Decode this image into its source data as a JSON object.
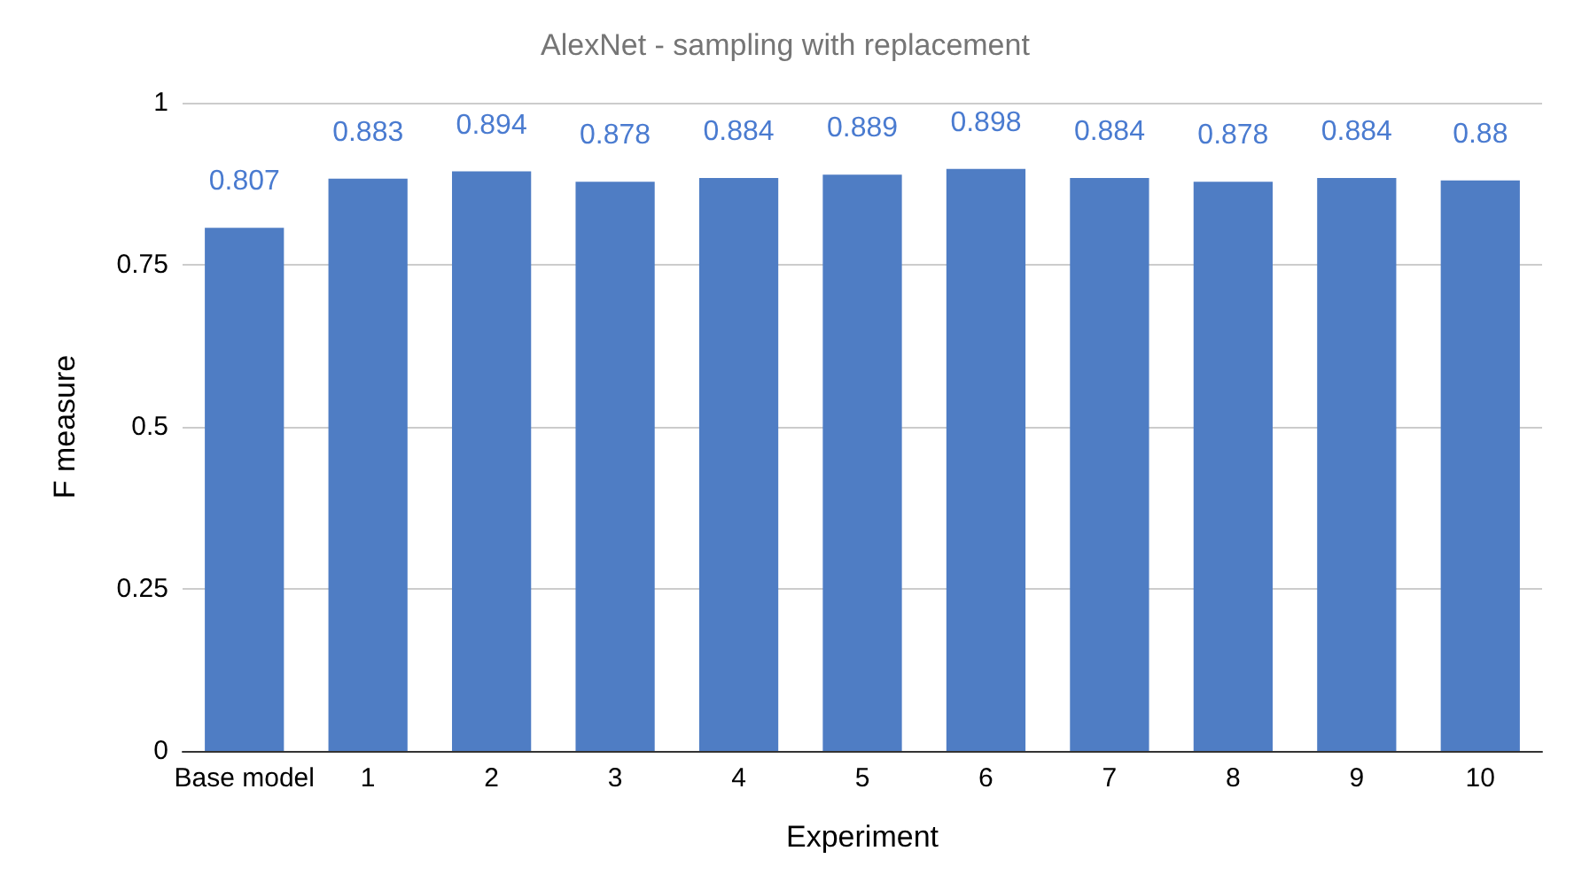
{
  "chart_data": {
    "type": "bar",
    "title": "AlexNet - sampling with replacement",
    "xlabel": "Experiment",
    "ylabel": "F measure",
    "categories": [
      "Base model",
      "1",
      "2",
      "3",
      "4",
      "5",
      "6",
      "7",
      "8",
      "9",
      "10"
    ],
    "values": [
      0.807,
      0.883,
      0.894,
      0.878,
      0.884,
      0.889,
      0.898,
      0.884,
      0.878,
      0.884,
      0.88
    ],
    "color": "#4f7dc4",
    "data_labels": true,
    "ylim": [
      0,
      1
    ],
    "yticks": [
      0,
      0.25,
      0.5,
      0.75,
      1
    ],
    "grid": "y"
  }
}
